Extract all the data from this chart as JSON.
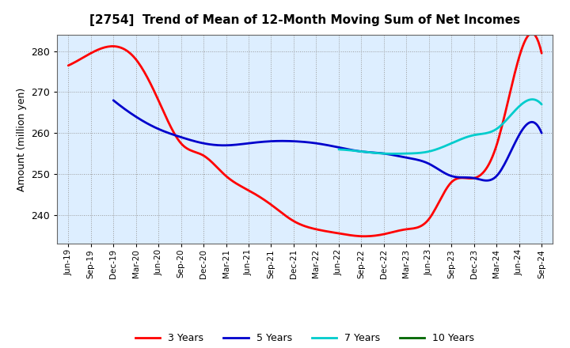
{
  "title": "[2754]  Trend of Mean of 12-Month Moving Sum of Net Incomes",
  "ylabel": "Amount (million yen)",
  "ylim": [
    233,
    284
  ],
  "yticks": [
    240,
    250,
    260,
    270,
    280
  ],
  "bg_color": "#DDEEFF",
  "series": {
    "3 Years": {
      "color": "#FF0000",
      "points": [
        [
          0,
          276.5
        ],
        [
          1,
          279.5
        ],
        [
          2,
          281.2
        ],
        [
          3,
          278.0
        ],
        [
          4,
          268.0
        ],
        [
          5,
          257.5
        ],
        [
          6,
          254.5
        ],
        [
          7,
          249.5
        ],
        [
          8,
          246.0
        ],
        [
          9,
          242.5
        ],
        [
          10,
          238.5
        ],
        [
          11,
          236.5
        ],
        [
          12,
          235.5
        ],
        [
          13,
          234.8
        ],
        [
          14,
          235.3
        ],
        [
          15,
          236.5
        ],
        [
          16,
          239.0
        ],
        [
          17,
          248.0
        ],
        [
          18,
          249.0
        ],
        [
          19,
          257.0
        ],
        [
          20,
          278.5
        ],
        [
          21,
          279.5
        ]
      ]
    },
    "5 Years": {
      "color": "#0000CC",
      "points": [
        [
          2,
          268.0
        ],
        [
          3,
          264.0
        ],
        [
          4,
          261.0
        ],
        [
          5,
          259.0
        ],
        [
          6,
          257.5
        ],
        [
          7,
          257.0
        ],
        [
          8,
          257.5
        ],
        [
          9,
          258.0
        ],
        [
          10,
          258.0
        ],
        [
          11,
          257.5
        ],
        [
          12,
          256.5
        ],
        [
          13,
          255.5
        ],
        [
          14,
          255.0
        ],
        [
          15,
          254.0
        ],
        [
          16,
          252.5
        ],
        [
          17,
          249.5
        ],
        [
          18,
          249.0
        ],
        [
          19,
          249.5
        ],
        [
          20,
          259.5
        ],
        [
          21,
          260.0
        ]
      ]
    },
    "7 Years": {
      "color": "#00CCCC",
      "points": [
        [
          12,
          256.0
        ],
        [
          13,
          255.5
        ],
        [
          14,
          255.0
        ],
        [
          15,
          255.0
        ],
        [
          16,
          255.5
        ],
        [
          17,
          257.5
        ],
        [
          18,
          259.5
        ],
        [
          19,
          261.0
        ],
        [
          20,
          266.5
        ],
        [
          21,
          267.0
        ]
      ]
    },
    "10 Years": {
      "color": "#006600",
      "points": []
    }
  },
  "xtick_labels": [
    "Jun-19",
    "Sep-19",
    "Dec-19",
    "Mar-20",
    "Jun-20",
    "Sep-20",
    "Dec-20",
    "Mar-21",
    "Jun-21",
    "Sep-21",
    "Dec-21",
    "Mar-22",
    "Jun-22",
    "Sep-22",
    "Dec-22",
    "Mar-23",
    "Jun-23",
    "Sep-23",
    "Dec-23",
    "Mar-24",
    "Jun-24",
    "Sep-24"
  ],
  "legend_names": [
    "3 Years",
    "5 Years",
    "7 Years",
    "10 Years"
  ],
  "legend_colors": [
    "#FF0000",
    "#0000CC",
    "#00CCCC",
    "#006600"
  ]
}
